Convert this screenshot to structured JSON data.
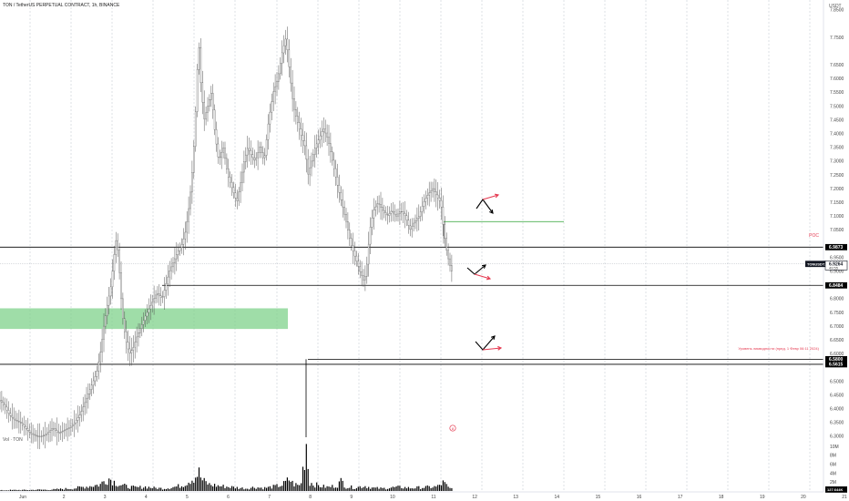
{
  "header": {
    "title": "TON / TetherUS PERPETUAL CONTRACT, 1h, BINANCE",
    "currency": "USDT"
  },
  "volume_pane": {
    "label": "Vol · TON",
    "ticks": [
      "10M",
      "8M",
      "6M",
      "4M",
      "2M"
    ],
    "last_value": "127.644K"
  },
  "price_tags": {
    "current_symbol": "TONUSDT.P",
    "current_price": "6.9264",
    "countdown": "49:55",
    "level_top": "6.9873",
    "level_mid": "6.8484",
    "level_low_a": "6.5800",
    "level_low_b": "6.5615",
    "poc_label": "POC",
    "marker_label": "8"
  },
  "annotations": {
    "liquidity_note": "Уровень ликвидности (пред. 1 Февр 06:11 2024)"
  },
  "colors": {
    "up": "#26a69a",
    "wick": "#555555",
    "zone": "#7fd18b",
    "line": "#000000",
    "green_level": "#4caf50",
    "red_arrow": "#e53950",
    "tag_bg": "#000000",
    "current_tag_bg": "#131722"
  },
  "chart_data": {
    "type": "candlestick",
    "timeframe": "1h",
    "ylim": [
      6.2,
      7.9
    ],
    "y_ticks": [
      7.85,
      7.75,
      7.65,
      7.6,
      7.55,
      7.5,
      7.45,
      7.4,
      7.35,
      7.3,
      7.25,
      7.2,
      7.15,
      7.1,
      7.05,
      6.95,
      6.9,
      6.8,
      6.75,
      6.7,
      6.65,
      6.6,
      6.5,
      6.45,
      6.4,
      6.35,
      6.3
    ],
    "y_tick_labels": [
      "7.8500",
      "7.7500",
      "7.6500",
      "7.6000",
      "7.5500",
      "7.5000",
      "7.4500",
      "7.4000",
      "7.3500",
      "7.3000",
      "7.2500",
      "7.2000",
      "7.1500",
      "7.1000",
      "7.0500",
      "6.9500",
      "6.9000",
      "6.8000",
      "6.7500",
      "6.7000",
      "6.6500",
      "6.6000",
      "6.5000",
      "6.4500",
      "6.4000",
      "6.3500",
      "6.3000"
    ],
    "x_ticks": [
      "Jun",
      "2",
      "3",
      "4",
      "5",
      "6",
      "7",
      "8",
      "9",
      "10",
      "11",
      "12",
      "13",
      "14",
      "15",
      "16",
      "17",
      "18",
      "19",
      "20",
      "21",
      "22"
    ],
    "price_path": [
      [
        0,
        6.43
      ],
      [
        5,
        6.41
      ],
      [
        10,
        6.38
      ],
      [
        16,
        6.36
      ],
      [
        22,
        6.35
      ],
      [
        28,
        6.33
      ],
      [
        34,
        6.31
      ],
      [
        40,
        6.3
      ],
      [
        46,
        6.3
      ],
      [
        52,
        6.31
      ],
      [
        58,
        6.33
      ],
      [
        64,
        6.31
      ],
      [
        70,
        6.32
      ],
      [
        76,
        6.33
      ],
      [
        82,
        6.35
      ],
      [
        88,
        6.38
      ],
      [
        94,
        6.43
      ],
      [
        100,
        6.48
      ],
      [
        106,
        6.53
      ],
      [
        110,
        6.6
      ],
      [
        114,
        6.7
      ],
      [
        118,
        6.78
      ],
      [
        122,
        6.85
      ],
      [
        125,
        6.95
      ],
      [
        128,
        7.03
      ],
      [
        131,
        6.9
      ],
      [
        134,
        6.75
      ],
      [
        138,
        6.65
      ],
      [
        142,
        6.6
      ],
      [
        146,
        6.62
      ],
      [
        150,
        6.66
      ],
      [
        155,
        6.7
      ],
      [
        160,
        6.74
      ],
      [
        166,
        6.78
      ],
      [
        172,
        6.82
      ],
      [
        178,
        6.8
      ],
      [
        182,
        6.85
      ],
      [
        186,
        6.9
      ],
      [
        190,
        6.93
      ],
      [
        195,
        6.97
      ],
      [
        200,
        7.0
      ],
      [
        204,
        7.05
      ],
      [
        208,
        7.15
      ],
      [
        212,
        7.3
      ],
      [
        215,
        7.5
      ],
      [
        218,
        7.75
      ],
      [
        220,
        7.6
      ],
      [
        224,
        7.45
      ],
      [
        228,
        7.5
      ],
      [
        232,
        7.55
      ],
      [
        236,
        7.4
      ],
      [
        240,
        7.3
      ],
      [
        245,
        7.35
      ],
      [
        250,
        7.25
      ],
      [
        255,
        7.2
      ],
      [
        260,
        7.15
      ],
      [
        264,
        7.22
      ],
      [
        268,
        7.3
      ],
      [
        272,
        7.35
      ],
      [
        276,
        7.32
      ],
      [
        280,
        7.3
      ],
      [
        285,
        7.35
      ],
      [
        290,
        7.3
      ],
      [
        295,
        7.45
      ],
      [
        300,
        7.55
      ],
      [
        305,
        7.6
      ],
      [
        310,
        7.7
      ],
      [
        314,
        7.75
      ],
      [
        318,
        7.62
      ],
      [
        322,
        7.5
      ],
      [
        326,
        7.45
      ],
      [
        330,
        7.4
      ],
      [
        335,
        7.35
      ],
      [
        338,
        7.25
      ],
      [
        342,
        7.3
      ],
      [
        346,
        7.35
      ],
      [
        350,
        7.38
      ],
      [
        355,
        7.42
      ],
      [
        360,
        7.38
      ],
      [
        365,
        7.3
      ],
      [
        370,
        7.22
      ],
      [
        375,
        7.15
      ],
      [
        380,
        7.08
      ],
      [
        385,
        7.0
      ],
      [
        390,
        6.95
      ],
      [
        395,
        6.9
      ],
      [
        400,
        6.86
      ],
      [
        403,
        6.93
      ],
      [
        406,
        7.05
      ],
      [
        410,
        7.12
      ],
      [
        415,
        7.15
      ],
      [
        420,
        7.12
      ],
      [
        425,
        7.1
      ],
      [
        430,
        7.12
      ],
      [
        435,
        7.1
      ],
      [
        440,
        7.12
      ],
      [
        445,
        7.1
      ],
      [
        450,
        7.05
      ],
      [
        455,
        7.08
      ],
      [
        460,
        7.1
      ],
      [
        465,
        7.15
      ],
      [
        470,
        7.18
      ],
      [
        475,
        7.2
      ],
      [
        480,
        7.17
      ],
      [
        484,
        7.15
      ],
      [
        487,
        7.05
      ],
      [
        490,
        6.98
      ],
      [
        493,
        6.93
      ],
      [
        496,
        6.9
      ]
    ],
    "volume": [
      {
        "x": 0,
        "v": 0.15
      },
      {
        "x": 10,
        "v": 0.2
      },
      {
        "x": 20,
        "v": 0.25
      },
      {
        "x": 30,
        "v": 0.22
      },
      {
        "x": 40,
        "v": 0.3
      },
      {
        "x": 50,
        "v": 0.28
      },
      {
        "x": 60,
        "v": 0.35
      },
      {
        "x": 70,
        "v": 0.5
      },
      {
        "x": 80,
        "v": 0.6
      },
      {
        "x": 90,
        "v": 0.9
      },
      {
        "x": 100,
        "v": 1.2
      },
      {
        "x": 110,
        "v": 1.5
      },
      {
        "x": 115,
        "v": 2.5
      },
      {
        "x": 120,
        "v": 3.0
      },
      {
        "x": 125,
        "v": 2.2
      },
      {
        "x": 130,
        "v": 1.6
      },
      {
        "x": 140,
        "v": 1.0
      },
      {
        "x": 150,
        "v": 0.8
      },
      {
        "x": 160,
        "v": 1.0
      },
      {
        "x": 170,
        "v": 0.7
      },
      {
        "x": 180,
        "v": 0.6
      },
      {
        "x": 190,
        "v": 0.9
      },
      {
        "x": 200,
        "v": 1.3
      },
      {
        "x": 205,
        "v": 2.0
      },
      {
        "x": 210,
        "v": 2.8
      },
      {
        "x": 214,
        "v": 3.2
      },
      {
        "x": 218,
        "v": 4.5
      },
      {
        "x": 222,
        "v": 2.5
      },
      {
        "x": 230,
        "v": 1.5
      },
      {
        "x": 240,
        "v": 1.2
      },
      {
        "x": 250,
        "v": 1.0
      },
      {
        "x": 260,
        "v": 0.8
      },
      {
        "x": 270,
        "v": 0.6
      },
      {
        "x": 280,
        "v": 0.9
      },
      {
        "x": 290,
        "v": 0.7
      },
      {
        "x": 300,
        "v": 1.0
      },
      {
        "x": 310,
        "v": 1.4
      },
      {
        "x": 318,
        "v": 2.8
      },
      {
        "x": 322,
        "v": 1.6
      },
      {
        "x": 330,
        "v": 1.2
      },
      {
        "x": 336,
        "v": 10.5
      },
      {
        "x": 340,
        "v": 2.0
      },
      {
        "x": 350,
        "v": 1.2
      },
      {
        "x": 360,
        "v": 0.9
      },
      {
        "x": 370,
        "v": 1.3
      },
      {
        "x": 375,
        "v": 2.4
      },
      {
        "x": 380,
        "v": 1.0
      },
      {
        "x": 390,
        "v": 0.8
      },
      {
        "x": 400,
        "v": 1.2
      },
      {
        "x": 410,
        "v": 0.7
      },
      {
        "x": 420,
        "v": 0.6
      },
      {
        "x": 430,
        "v": 0.8
      },
      {
        "x": 440,
        "v": 0.9
      },
      {
        "x": 450,
        "v": 0.7
      },
      {
        "x": 460,
        "v": 0.8
      },
      {
        "x": 470,
        "v": 0.9
      },
      {
        "x": 480,
        "v": 1.0
      },
      {
        "x": 487,
        "v": 2.0
      },
      {
        "x": 493,
        "v": 0.6
      }
    ],
    "volume_ylim": [
      0,
      12
    ],
    "levels": {
      "top": 6.9873,
      "mid": 6.8484,
      "low_a": 6.58,
      "low_b": 6.5615,
      "current": 6.9264,
      "green": 7.08
    },
    "zone": {
      "from": 6.69,
      "to": 6.765
    }
  }
}
